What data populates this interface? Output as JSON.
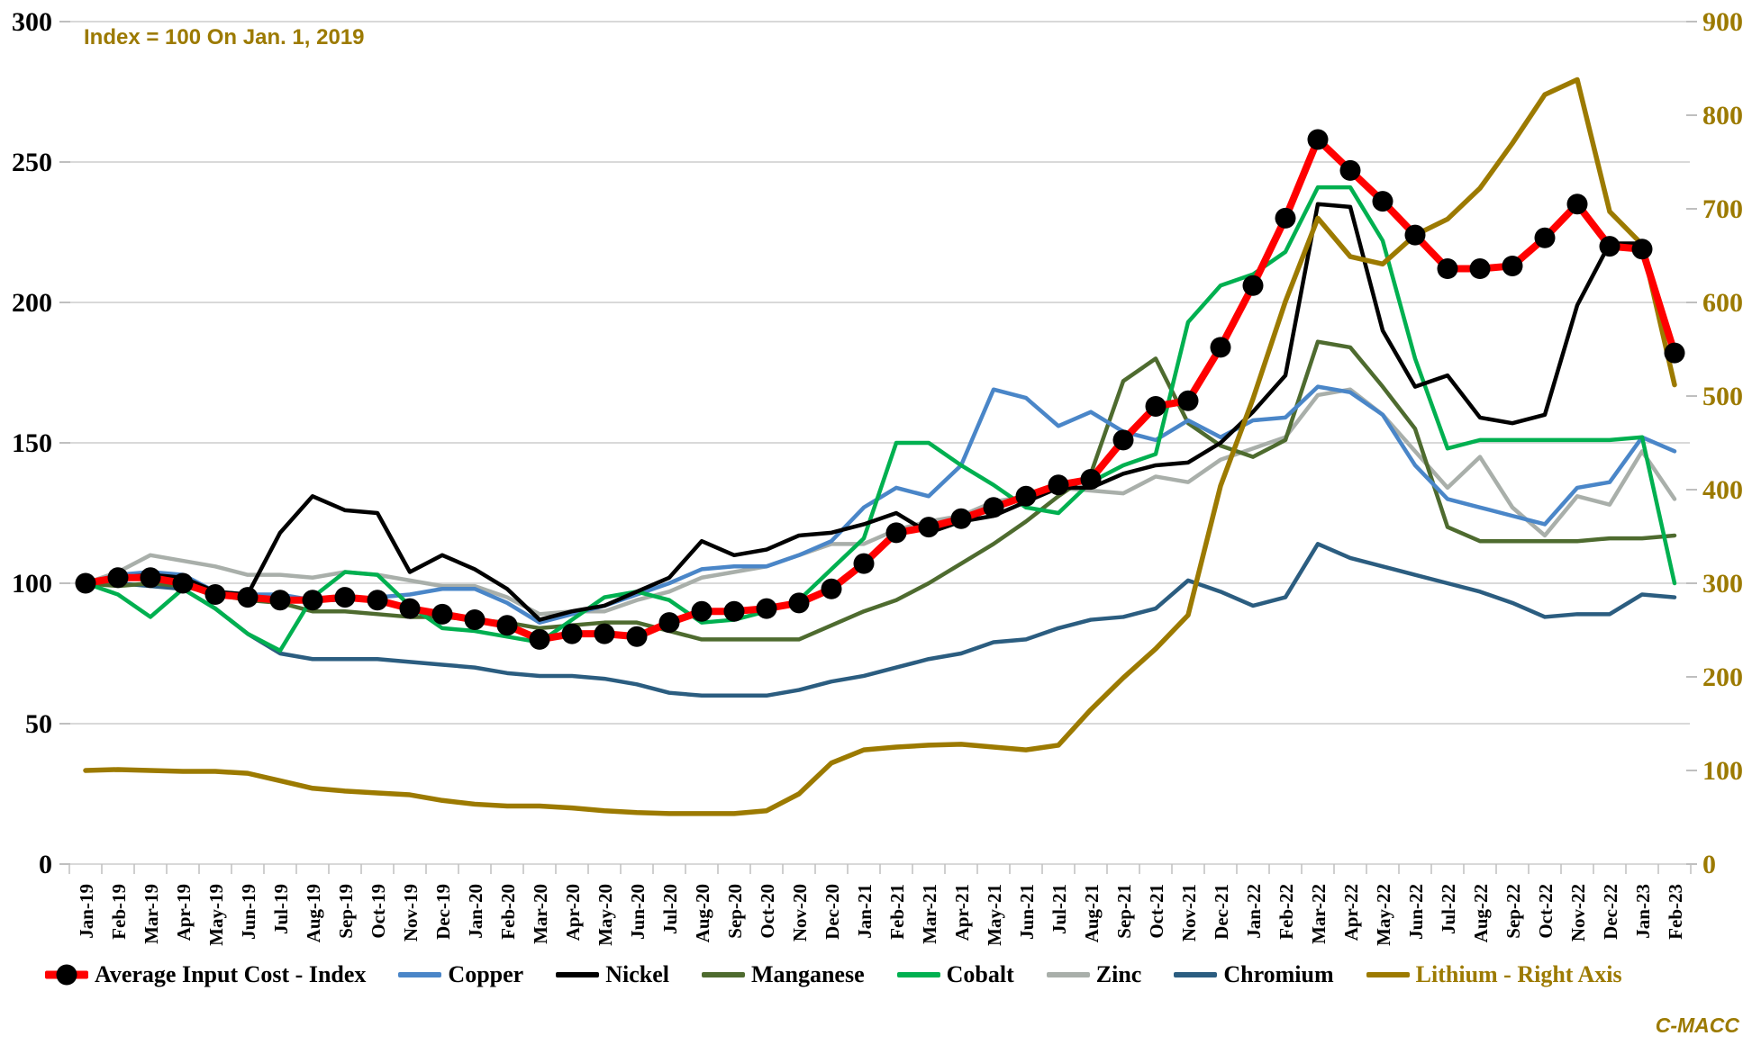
{
  "annotation": "Index = 100 On Jan. 1, 2019",
  "watermark": "C-MACC",
  "colors": {
    "gold": "#9c7a00",
    "grid": "#d9d9d9",
    "tick": "#bfbfbf",
    "axis_text_left": "#000000",
    "background": "#ffffff"
  },
  "chart_data": {
    "type": "line",
    "title": "",
    "xlabel": "",
    "ylabel_left": "",
    "ylabel_right": "",
    "grid": true,
    "legend_position": "bottom",
    "left_axis": {
      "min": 0,
      "max": 300,
      "ticks": [
        300,
        250,
        200,
        150,
        100,
        50,
        0
      ]
    },
    "right_axis": {
      "min": 0,
      "max": 900,
      "ticks": [
        900,
        800,
        700,
        600,
        500,
        400,
        300,
        200,
        100,
        0
      ]
    },
    "x_labels": [
      "Jan-19",
      "Feb-19",
      "Mar-19",
      "Apr-19",
      "May-19",
      "Jun-19",
      "Jul-19",
      "Aug-19",
      "Sep-19",
      "Oct-19",
      "Nov-19",
      "Dec-19",
      "Jan-20",
      "Feb-20",
      "Mar-20",
      "Apr-20",
      "May-20",
      "Jun-20",
      "Jul-20",
      "Aug-20",
      "Sep-20",
      "Oct-20",
      "Nov-20",
      "Dec-20",
      "Jan-21",
      "Feb-21",
      "Mar-21",
      "Apr-21",
      "May-21",
      "Jun-21",
      "Jul-21",
      "Aug-21",
      "Sep-21",
      "Oct-21",
      "Nov-21",
      "Dec-21",
      "Jan-22",
      "Feb-22",
      "Mar-22",
      "Apr-22",
      "May-22",
      "Jun-22",
      "Jul-22",
      "Aug-22",
      "Sep-22",
      "Oct-22",
      "Nov-22",
      "Dec-22",
      "Jan-23",
      "Feb-23"
    ],
    "series": [
      {
        "name": "Average Input Cost - Index",
        "axis": "left",
        "color": "#ff0000",
        "width": 8,
        "marker": "dot",
        "marker_color": "#000000",
        "values": [
          100,
          102,
          102,
          100,
          96,
          95,
          94,
          94,
          95,
          94,
          91,
          89,
          87,
          85,
          80,
          82,
          82,
          81,
          86,
          90,
          90,
          91,
          93,
          98,
          107,
          118,
          120,
          123,
          127,
          131,
          135,
          137,
          151,
          163,
          165,
          184,
          206,
          230,
          258,
          247,
          236,
          224,
          212,
          212,
          213,
          223,
          235,
          220,
          219,
          182
        ]
      },
      {
        "name": "Copper",
        "axis": "left",
        "color": "#4a86c8",
        "width": 4.5,
        "values": [
          100,
          103,
          104,
          103,
          97,
          96,
          96,
          94,
          94,
          95,
          96,
          98,
          98,
          93,
          86,
          89,
          92,
          96,
          100,
          105,
          106,
          106,
          110,
          115,
          127,
          134,
          131,
          142,
          169,
          166,
          156,
          161,
          154,
          151,
          158,
          152,
          158,
          159,
          170,
          168,
          160,
          142,
          130,
          127,
          124,
          121,
          134,
          136,
          152,
          147
        ]
      },
      {
        "name": "Nickel",
        "axis": "left",
        "color": "#000000",
        "width": 4.5,
        "values": [
          100,
          102,
          103,
          102,
          97,
          96,
          118,
          131,
          126,
          125,
          104,
          110,
          105,
          98,
          87,
          90,
          92,
          97,
          102,
          115,
          110,
          112,
          117,
          118,
          121,
          125,
          118,
          122,
          124,
          129,
          134,
          134,
          139,
          142,
          143,
          150,
          161,
          174,
          235,
          234,
          190,
          170,
          174,
          159,
          157,
          160,
          199,
          221,
          221,
          181
        ]
      },
      {
        "name": "Manganese",
        "axis": "left",
        "color": "#4e6b2f",
        "width": 4.5,
        "values": [
          100,
          99,
          100,
          99,
          96,
          94,
          93,
          90,
          90,
          89,
          88,
          88,
          87,
          86,
          84,
          85,
          86,
          86,
          83,
          80,
          80,
          80,
          80,
          85,
          90,
          94,
          100,
          107,
          114,
          122,
          131,
          139,
          172,
          180,
          157,
          149,
          145,
          151,
          186,
          184,
          170,
          155,
          120,
          115,
          115,
          115,
          115,
          116,
          116,
          117
        ]
      },
      {
        "name": "Cobalt",
        "axis": "left",
        "color": "#00b050",
        "width": 4.5,
        "values": [
          100,
          96,
          88,
          98,
          91,
          82,
          76,
          95,
          104,
          103,
          92,
          84,
          83,
          81,
          79,
          87,
          95,
          97,
          94,
          86,
          87,
          90,
          94,
          105,
          116,
          150,
          150,
          142,
          135,
          127,
          125,
          136,
          142,
          146,
          193,
          206,
          210,
          218,
          241,
          241,
          222,
          180,
          148,
          151,
          151,
          151,
          151,
          151,
          152,
          100
        ]
      },
      {
        "name": "Zinc",
        "axis": "left",
        "color": "#a9afaa",
        "width": 4.5,
        "values": [
          100,
          104,
          110,
          108,
          106,
          103,
          103,
          102,
          104,
          103,
          101,
          99,
          99,
          95,
          89,
          90,
          90,
          94,
          97,
          102,
          104,
          106,
          110,
          114,
          114,
          119,
          122,
          124,
          129,
          131,
          134,
          133,
          132,
          138,
          136,
          144,
          148,
          152,
          167,
          169,
          160,
          147,
          134,
          145,
          127,
          117,
          131,
          128,
          147,
          130
        ]
      },
      {
        "name": "Chromium",
        "axis": "left",
        "color": "#2b5d80",
        "width": 4.5,
        "values": [
          100,
          100,
          99,
          98,
          91,
          82,
          75,
          73,
          73,
          73,
          72,
          71,
          70,
          68,
          67,
          67,
          66,
          64,
          61,
          60,
          60,
          60,
          62,
          65,
          67,
          70,
          73,
          75,
          79,
          80,
          84,
          87,
          88,
          91,
          101,
          97,
          92,
          95,
          114,
          109,
          106,
          103,
          100,
          97,
          93,
          88,
          89,
          89,
          96,
          95
        ]
      },
      {
        "name": "Lithium - Right Axis",
        "axis": "right",
        "color": "#9c7a00",
        "width": 5.5,
        "label_color": "#9c7a00",
        "values": [
          100,
          101,
          100,
          99,
          99,
          97,
          89,
          81,
          78,
          76,
          74,
          68,
          64,
          62,
          62,
          60,
          57,
          55,
          54,
          54,
          54,
          57,
          75,
          108,
          122,
          125,
          127,
          128,
          125,
          122,
          127,
          165,
          199,
          230,
          266,
          404,
          497,
          601,
          690,
          649,
          641,
          672,
          689,
          722,
          770,
          822,
          838,
          697,
          662,
          512
        ]
      }
    ]
  }
}
